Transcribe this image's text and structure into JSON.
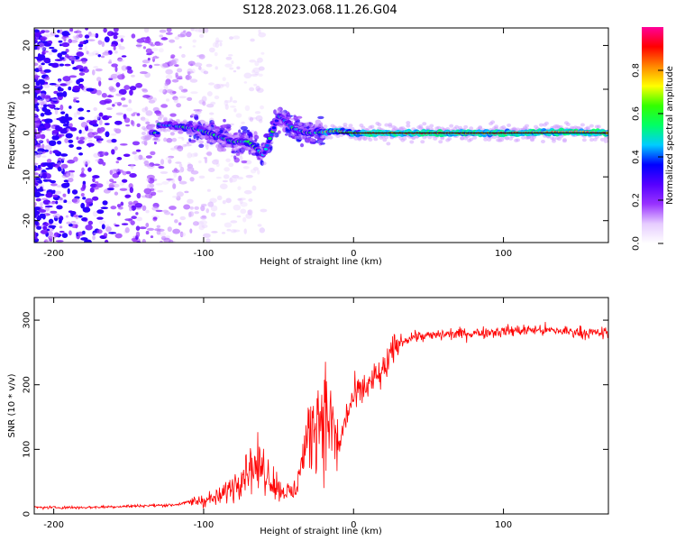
{
  "title": "S128.2023.068.11.26.G04",
  "chart_data": [
    {
      "type": "heatmap",
      "xlabel": "Height of straight line (km)",
      "ylabel": "Frequency (Hz)",
      "xlim": [
        -213,
        170
      ],
      "ylim": [
        -25,
        24
      ],
      "xticks": [
        -200,
        -100,
        0,
        100
      ],
      "yticks": [
        20,
        10,
        0,
        -10,
        -20
      ],
      "colorbar": {
        "label": "Normalized spectral amplitude",
        "range": [
          0,
          1
        ],
        "ticks": [
          0.0,
          0.2,
          0.4,
          0.6,
          0.8
        ],
        "colors": [
          "#ffffff",
          "#e6ccff",
          "#9933ff",
          "#5500ff",
          "#0000ff",
          "#00ccff",
          "#00ff66",
          "#33ff00",
          "#ffff00",
          "#ff8800",
          "#ff0000",
          "#ff0099"
        ]
      },
      "ridge": {
        "description_points": [
          [
            -130,
            2
          ],
          [
            -105,
            1
          ],
          [
            -80,
            -2
          ],
          [
            -70,
            -2
          ],
          [
            -60,
            -5
          ],
          [
            -50,
            4
          ],
          [
            -40,
            1
          ],
          [
            -30,
            0
          ],
          [
            -10,
            0.5
          ],
          [
            0,
            0
          ],
          [
            50,
            0
          ],
          [
            100,
            0
          ],
          [
            150,
            0.3
          ],
          [
            170,
            0
          ]
        ],
        "peak_amplitude": 1.0
      },
      "grid": false
    },
    {
      "type": "line",
      "xlabel": "Height of straight line (km)",
      "ylabel": "SNR (10 * v/v)",
      "xlim": [
        -213,
        170
      ],
      "ylim": [
        0,
        335
      ],
      "xticks": [
        -200,
        -100,
        0,
        100
      ],
      "yticks": [
        0,
        100,
        200,
        300
      ],
      "series": [
        {
          "color": "#ff0000",
          "x": [
            -213,
            -180,
            -150,
            -120,
            -105,
            -90,
            -80,
            -70,
            -60,
            -50,
            -40,
            -30,
            -25,
            -20,
            -15,
            -10,
            -5,
            0,
            10,
            20,
            25,
            30,
            40,
            50,
            60,
            80,
            100,
            120,
            140,
            160,
            170
          ],
          "y": [
            10,
            10,
            12,
            14,
            20,
            25,
            45,
            75,
            70,
            40,
            30,
            120,
            150,
            160,
            140,
            100,
            150,
            180,
            200,
            220,
            245,
            265,
            275,
            275,
            278,
            280,
            283,
            285,
            283,
            280,
            280
          ]
        }
      ],
      "grid": false
    }
  ]
}
